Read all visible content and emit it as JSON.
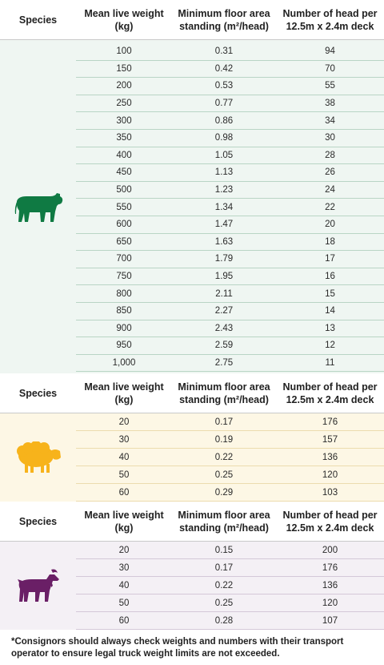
{
  "headers": {
    "species": "Species",
    "weight": "Mean live weight (kg)",
    "area": "Minimum floor area standing (m²/head)",
    "head": "Number of head per 12.5m x 2.4m deck"
  },
  "colors": {
    "cattle": "#0f7a43",
    "sheep": "#f7b31b",
    "goat": "#6a1f66"
  },
  "sections": [
    {
      "species_icon": "cattle-icon",
      "rows": [
        {
          "weight": "100",
          "area": "0.31",
          "head": "94"
        },
        {
          "weight": "150",
          "area": "0.42",
          "head": "70"
        },
        {
          "weight": "200",
          "area": "0.53",
          "head": "55"
        },
        {
          "weight": "250",
          "area": "0.77",
          "head": "38"
        },
        {
          "weight": "300",
          "area": "0.86",
          "head": "34"
        },
        {
          "weight": "350",
          "area": "0.98",
          "head": "30"
        },
        {
          "weight": "400",
          "area": "1.05",
          "head": "28"
        },
        {
          "weight": "450",
          "area": "1.13",
          "head": "26"
        },
        {
          "weight": "500",
          "area": "1.23",
          "head": "24"
        },
        {
          "weight": "550",
          "area": "1.34",
          "head": "22"
        },
        {
          "weight": "600",
          "area": "1.47",
          "head": "20"
        },
        {
          "weight": "650",
          "area": "1.63",
          "head": "18"
        },
        {
          "weight": "700",
          "area": "1.79",
          "head": "17"
        },
        {
          "weight": "750",
          "area": "1.95",
          "head": "16"
        },
        {
          "weight": "800",
          "area": "2.11",
          "head": "15"
        },
        {
          "weight": "850",
          "area": "2.27",
          "head": "14"
        },
        {
          "weight": "900",
          "area": "2.43",
          "head": "13"
        },
        {
          "weight": "950",
          "area": "2.59",
          "head": "12"
        },
        {
          "weight": "1,000",
          "area": "2.75",
          "head": "11"
        }
      ]
    },
    {
      "species_icon": "sheep-icon",
      "rows": [
        {
          "weight": "20",
          "area": "0.17",
          "head": "176"
        },
        {
          "weight": "30",
          "area": "0.19",
          "head": "157"
        },
        {
          "weight": "40",
          "area": "0.22",
          "head": "136"
        },
        {
          "weight": "50",
          "area": "0.25",
          "head": "120"
        },
        {
          "weight": "60",
          "area": "0.29",
          "head": "103"
        }
      ]
    },
    {
      "species_icon": "goat-icon",
      "rows": [
        {
          "weight": "20",
          "area": "0.15",
          "head": "200"
        },
        {
          "weight": "30",
          "area": "0.17",
          "head": "176"
        },
        {
          "weight": "40",
          "area": "0.22",
          "head": "136"
        },
        {
          "weight": "50",
          "area": "0.25",
          "head": "120"
        },
        {
          "weight": "60",
          "area": "0.28",
          "head": "107"
        }
      ]
    }
  ],
  "footnote": "*Consignors should always check weights and numbers with their transport operator to ensure legal truck weight limits are not exceeded."
}
